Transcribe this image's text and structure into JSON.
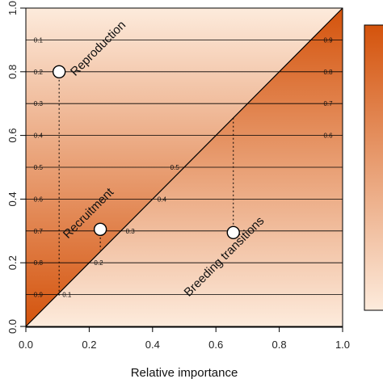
{
  "chart_data": {
    "type": "scatter",
    "title": "",
    "xlabel": "Relative importance",
    "ylabel": "",
    "xlim": [
      0,
      1
    ],
    "ylim": [
      0,
      1
    ],
    "x_ticks": [
      "0.0",
      "0.2",
      "0.4",
      "0.6",
      "0.8",
      "1.0"
    ],
    "y_ticks": [
      "0.0",
      "0.2",
      "0.4",
      "0.6",
      "0.8",
      "1.0"
    ],
    "grid": false,
    "fill_colors": {
      "low": "#fdebdc",
      "high": "#d4530c"
    },
    "line_color": "#000000",
    "points": [
      {
        "label": "Reproduction",
        "x": 0.105,
        "y": 0.8
      },
      {
        "label": "Recruitment",
        "x": 0.235,
        "y": 0.305
      },
      {
        "label": "Breeding transitions",
        "x": 0.655,
        "y": 0.295
      }
    ],
    "contours": [
      {
        "y": 0.1,
        "left_label": "0.9",
        "inner_label": "0.1"
      },
      {
        "y": 0.2,
        "left_label": "0.8",
        "inner_label": "0.2"
      },
      {
        "y": 0.3,
        "left_label": "0.7",
        "inner_label": "0.3"
      },
      {
        "y": 0.4,
        "left_label": "0.6",
        "inner_label": "0.4"
      },
      {
        "y": 0.5,
        "left_label": "0.5",
        "inner_label": "0.5"
      },
      {
        "y": 0.6,
        "left_label": "0.4",
        "inner_label": "0.6"
      },
      {
        "y": 0.7,
        "left_label": "0.3",
        "inner_label": "0.7"
      },
      {
        "y": 0.8,
        "left_label": "0.2",
        "inner_label": "0.8"
      },
      {
        "y": 0.9,
        "left_label": "0.1",
        "inner_label": "0.9"
      }
    ],
    "colorbar": {
      "range": [
        0,
        1
      ],
      "low_color": "#fdebdc",
      "high_color": "#d4530c"
    }
  }
}
